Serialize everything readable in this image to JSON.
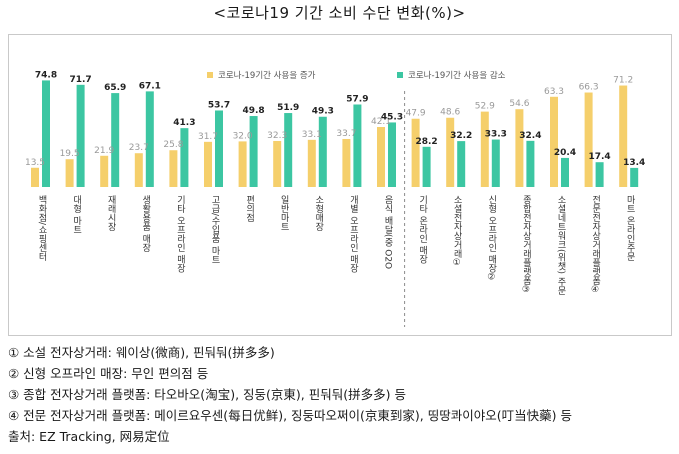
{
  "title": "<코로나19 기간 소비 수단 변화(%)>",
  "chart_data": {
    "type": "bar",
    "categories": [
      "백화점/쇼핑센터",
      "대형 마트",
      "재래시장",
      "생활용품 매장",
      "기타 오프라인 매장",
      "고급/수입품 마트",
      "편의점",
      "일반마트",
      "소형매장",
      "개별 오프라인 매장",
      "음식 배달(중 O2O",
      "기타 온라인 매장",
      "소셜전자상거래①",
      "신형 오프라인 매장②",
      "종합전자상거래플랫폼③",
      "소셜네트워크(위챗) 주문",
      "전문전자상거래플랫폼④",
      "마트 온라인주문"
    ],
    "series": [
      {
        "name": "코로나-19기간 사용을 증가",
        "color": "#f5cf6b",
        "values": [
          13.5,
          19.5,
          21.9,
          23.7,
          25.8,
          31.7,
          32.0,
          32.3,
          33.1,
          33.7,
          42.1,
          47.9,
          48.6,
          52.9,
          54.6,
          63.3,
          66.3,
          71.2
        ]
      },
      {
        "name": "코로나-19기간 사용을 감소",
        "color": "#3cc6a2",
        "values": [
          74.8,
          71.7,
          65.9,
          67.1,
          41.3,
          53.7,
          49.8,
          51.9,
          49.3,
          57.9,
          45.3,
          28.2,
          32.2,
          33.3,
          32.4,
          20.4,
          17.4,
          13.4
        ]
      }
    ],
    "ylim": [
      0,
      80
    ],
    "legend_position": "top",
    "divider_after_index": 10
  },
  "notes": [
    "① 소설 전자상거래:  웨이상(微商), 핀둬둬(拼多多)",
    "② 신형 오프라인 매장: 무인 편의점 등",
    "③ 종합 전자상거래 플랫폼: 타오바오(淘宝), 징둥(京東), 핀둬둬(拼多多) 등",
    "④ 전문 전자상거래 플랫폼: 메이르요우센(每日优鲜), 징둥따오쩌이(京東到家), 띵땅콰이야오(叮当快藥) 등",
    "출처: EZ Tracking, 网易定位"
  ]
}
